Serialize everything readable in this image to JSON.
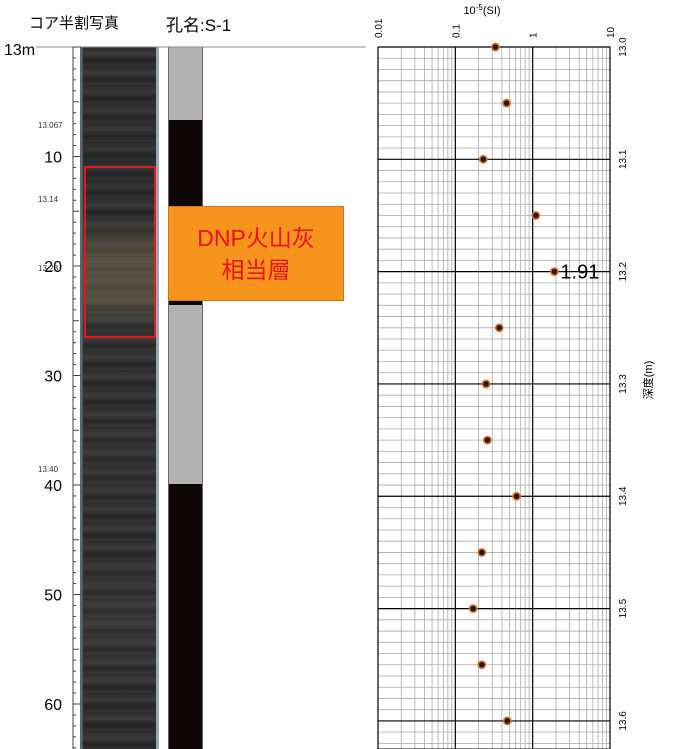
{
  "header": {
    "core_photo_title": "コア半割写真",
    "hole_name": "孔名:S-1"
  },
  "scale": {
    "top_label": "13m",
    "ruler_ticks": [
      {
        "value": 10,
        "label": "10"
      },
      {
        "value": 20,
        "label": "20"
      },
      {
        "value": 30,
        "label": "30"
      },
      {
        "value": 40,
        "label": "40"
      },
      {
        "value": 50,
        "label": "50"
      },
      {
        "value": 60,
        "label": "60"
      }
    ],
    "photo_notes": [
      "13.067",
      "13.14",
      "13.23",
      "13.40"
    ]
  },
  "ash_layer": {
    "label_line1": "DNP火山灰",
    "label_line2": "相当層"
  },
  "depth_column": {
    "segments": [
      {
        "color": "#b3b3b3"
      },
      {
        "color": "#0f0808"
      },
      {
        "color": "#b3b3b3"
      },
      {
        "color": "#0f0808"
      }
    ]
  },
  "colors": {
    "ash_fill": "#f6941d",
    "ash_text": "#e8141a",
    "marker_fill": "#1a1a1a",
    "marker_stroke": "#e8701c"
  },
  "chart_data": {
    "type": "scatter",
    "title": "",
    "xlabel": "10-5(SI)",
    "ylabel": "深度(m)",
    "x_scale": "log",
    "xlim": [
      0.01,
      10
    ],
    "ylim": [
      13.0,
      13.625
    ],
    "x_ticks": [
      "0.01",
      "0.1",
      "1",
      "10"
    ],
    "y_ticks": [
      "13.0",
      "13.1",
      "13.2",
      "13.3",
      "13.4",
      "13.5",
      "13.6"
    ],
    "grid": true,
    "annotation": {
      "label": "1.91",
      "x": 1.91,
      "y": 13.2
    },
    "points": [
      {
        "y": 13.0,
        "x": 0.33
      },
      {
        "y": 13.05,
        "x": 0.46
      },
      {
        "y": 13.1,
        "x": 0.23
      },
      {
        "y": 13.15,
        "x": 1.1
      },
      {
        "y": 13.2,
        "x": 1.91
      },
      {
        "y": 13.25,
        "x": 0.37
      },
      {
        "y": 13.3,
        "x": 0.25
      },
      {
        "y": 13.35,
        "x": 0.26
      },
      {
        "y": 13.4,
        "x": 0.62
      },
      {
        "y": 13.45,
        "x": 0.22
      },
      {
        "y": 13.5,
        "x": 0.17
      },
      {
        "y": 13.55,
        "x": 0.22
      },
      {
        "y": 13.6,
        "x": 0.47
      }
    ]
  }
}
